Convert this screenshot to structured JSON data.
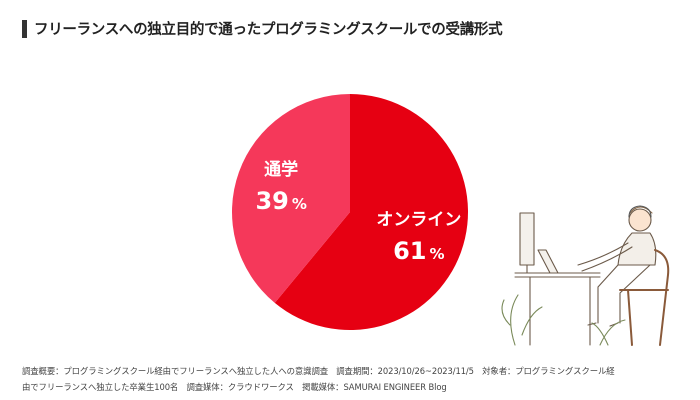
{
  "title": "フリーランスへの独立目的で通ったプログラミングスクールでの受講形式",
  "chart_data": {
    "type": "pie",
    "title": "フリーランスへの独立目的で通ったプログラミングスクールでの受講形式",
    "slices": [
      {
        "label": "オンライン",
        "value": 61,
        "display": "61",
        "unit": "%",
        "color": "#e60012"
      },
      {
        "label": "通学",
        "value": 39,
        "display": "39",
        "unit": "%",
        "color": "#f5385a"
      }
    ]
  },
  "footnote": {
    "line1": "調査概要：プログラミングスクール経由でフリーランスへ独立した人への意識調査　調査期間：2023/10/26~2023/11/5　対象者：プログラミングスクール経",
    "line2": "由でフリーランスへ独立した卒業生100名　調査媒体：クラウドワークス　掲載媒体：SAMURAI ENGINEER Blog"
  },
  "colors": {
    "primary": "#e60012",
    "secondary": "#f5385a",
    "title_bar": "#333333"
  }
}
